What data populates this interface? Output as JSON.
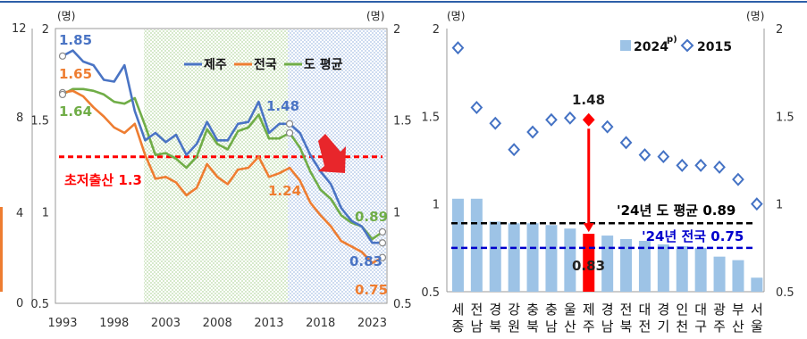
{
  "left_chart": {
    "unit_left": "(명)",
    "unit_right": "(명)",
    "y_ticks": [
      "0.5",
      "1",
      "1.5",
      "2"
    ],
    "x_ticks": [
      "1993",
      "1998",
      "2003",
      "2008",
      "2013",
      "2018",
      "2023"
    ],
    "partial_outer_ticks": [
      "12",
      "8",
      "4",
      "0"
    ],
    "threshold_label": "초저출산 1.3",
    "value_labels": {
      "jeju_start": "1.85",
      "national_start": "1.65",
      "province_start": "1.64",
      "jeju_peak": "1.48",
      "national_2015": "1.24",
      "province_end": "0.89",
      "jeju_end": "0.83",
      "national_end": "0.75"
    },
    "colors": {
      "jeju": "#4a74c4",
      "national": "#ee7d31",
      "province": "#70ad47",
      "threshold": "#ff0000",
      "arrow": "#e8262b"
    }
  },
  "right_chart": {
    "unit_left": "(명)",
    "unit_right": "(명)",
    "y_ticks": [
      "0.5",
      "1",
      "1.5",
      "2"
    ],
    "legend": {
      "bar_label": "2024",
      "bar_sup": "p)",
      "diamond_label": "2015"
    },
    "provinces": [
      [
        "세",
        "종"
      ],
      [
        "전",
        "남"
      ],
      [
        "경",
        "북"
      ],
      [
        "강",
        "원"
      ],
      [
        "충",
        "북"
      ],
      [
        "충",
        "남"
      ],
      [
        "울",
        "산"
      ],
      [
        "제",
        "주"
      ],
      [
        "경",
        "남"
      ],
      [
        "전",
        "북"
      ],
      [
        "대",
        "전"
      ],
      [
        "경",
        "기"
      ],
      [
        "인",
        "천"
      ],
      [
        "대",
        "구"
      ],
      [
        "광",
        "주"
      ],
      [
        "부",
        "산"
      ],
      [
        "서",
        "울"
      ]
    ],
    "province_avg_label": "'24년 도 평균 0.89",
    "national_label": "'24년 전국 0.75",
    "jeju_2015_label": "1.48",
    "jeju_2024_label": "0.83",
    "colors": {
      "bar": "#9dc3e6",
      "bar_highlight": "#ff0000",
      "diamond": "#4472c4",
      "avg_line": "#000000",
      "nat_line": "#0000cc"
    }
  },
  "chart_data": [
    {
      "type": "line",
      "x": [
        1993,
        1994,
        1995,
        1996,
        1997,
        1998,
        1999,
        2000,
        2001,
        2002,
        2003,
        2004,
        2005,
        2006,
        2007,
        2008,
        2009,
        2010,
        2011,
        2012,
        2013,
        2014,
        2015,
        2016,
        2017,
        2018,
        2019,
        2020,
        2021,
        2022,
        2023,
        2024
      ],
      "series": [
        {
          "name": "제주",
          "values": [
            1.85,
            1.88,
            1.82,
            1.8,
            1.72,
            1.71,
            1.8,
            1.55,
            1.39,
            1.43,
            1.38,
            1.42,
            1.31,
            1.37,
            1.49,
            1.39,
            1.39,
            1.48,
            1.49,
            1.6,
            1.43,
            1.48,
            1.48,
            1.43,
            1.31,
            1.22,
            1.15,
            1.02,
            0.95,
            0.92,
            0.83,
            0.83
          ]
        },
        {
          "name": "전국",
          "values": [
            1.65,
            1.66,
            1.63,
            1.57,
            1.52,
            1.46,
            1.43,
            1.48,
            1.31,
            1.18,
            1.19,
            1.16,
            1.09,
            1.13,
            1.26,
            1.19,
            1.15,
            1.23,
            1.24,
            1.3,
            1.19,
            1.21,
            1.24,
            1.17,
            1.05,
            0.98,
            0.92,
            0.84,
            0.81,
            0.78,
            0.72,
            0.75
          ]
        },
        {
          "name": "도 평균",
          "values": [
            1.64,
            1.67,
            1.67,
            1.66,
            1.64,
            1.6,
            1.59,
            1.62,
            1.47,
            1.31,
            1.32,
            1.29,
            1.24,
            1.3,
            1.45,
            1.37,
            1.34,
            1.44,
            1.46,
            1.53,
            1.4,
            1.4,
            1.43,
            1.35,
            1.22,
            1.12,
            1.07,
            0.98,
            0.94,
            0.92,
            0.85,
            0.89
          ]
        }
      ],
      "reference_lines": [
        {
          "label": "초저출산 1.3",
          "y": 1.3
        }
      ],
      "ylim": [
        0.5,
        2
      ]
    },
    {
      "type": "bar",
      "categories": [
        "세종",
        "전남",
        "경북",
        "강원",
        "충북",
        "충남",
        "울산",
        "제주",
        "경남",
        "전북",
        "대전",
        "경기",
        "인천",
        "대구",
        "광주",
        "부산",
        "서울"
      ],
      "series": [
        {
          "name": "2024",
          "values": [
            1.03,
            1.03,
            0.9,
            0.89,
            0.89,
            0.88,
            0.86,
            0.83,
            0.82,
            0.8,
            0.79,
            0.77,
            0.76,
            0.75,
            0.7,
            0.68,
            0.58
          ]
        },
        {
          "name": "2015",
          "values": [
            1.89,
            1.55,
            1.46,
            1.31,
            1.41,
            1.48,
            1.49,
            1.48,
            1.44,
            1.35,
            1.28,
            1.27,
            1.22,
            1.22,
            1.21,
            1.14,
            1.0
          ]
        }
      ],
      "reference_lines": [
        {
          "label": "'24년 도 평균 0.89",
          "y": 0.89
        },
        {
          "label": "'24년 전국 0.75",
          "y": 0.75
        }
      ],
      "ylim": [
        0.5,
        2
      ]
    }
  ]
}
